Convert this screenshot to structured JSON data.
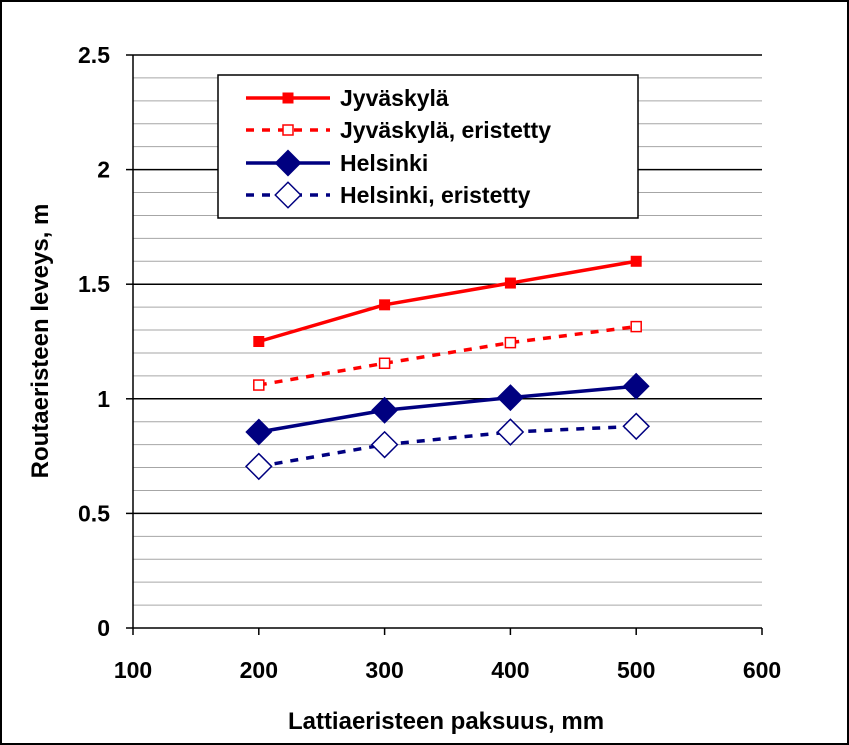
{
  "chart_data": {
    "type": "line",
    "title": "",
    "xlabel": "Lattiaeristeen paksuus, mm",
    "ylabel": "Routaeristeen leveys, m",
    "xlim": [
      100,
      600
    ],
    "ylim": [
      0,
      2.5
    ],
    "x_ticks": [
      100,
      200,
      300,
      400,
      500,
      600
    ],
    "y_ticks": [
      0,
      0.5,
      1,
      1.5,
      2,
      2.5
    ],
    "y_tick_labels": [
      "0",
      "0.5",
      "1",
      "1.5",
      "2",
      "2.5"
    ],
    "y_minor_step": 0.1,
    "grid": "horizontal major and minor",
    "legend_position": "top-left inside plot",
    "series": [
      {
        "name": "Jyväskylä",
        "x": [
          200,
          300,
          400,
          500
        ],
        "values": [
          1.25,
          1.41,
          1.505,
          1.6
        ],
        "color": "#ff0000",
        "line": "solid",
        "marker": "square-filled"
      },
      {
        "name": "Jyväskylä, eristetty",
        "x": [
          200,
          300,
          400,
          500
        ],
        "values": [
          1.06,
          1.155,
          1.245,
          1.315
        ],
        "color": "#ff0000",
        "line": "dashed",
        "marker": "square-open"
      },
      {
        "name": "Helsinki",
        "x": [
          200,
          300,
          400,
          500
        ],
        "values": [
          0.855,
          0.95,
          1.005,
          1.055
        ],
        "color": "#000080",
        "line": "solid",
        "marker": "diamond-filled"
      },
      {
        "name": "Helsinki, eristetty",
        "x": [
          200,
          300,
          400,
          500
        ],
        "values": [
          0.705,
          0.8,
          0.855,
          0.88
        ],
        "color": "#000080",
        "line": "dashed",
        "marker": "diamond-open"
      }
    ]
  }
}
